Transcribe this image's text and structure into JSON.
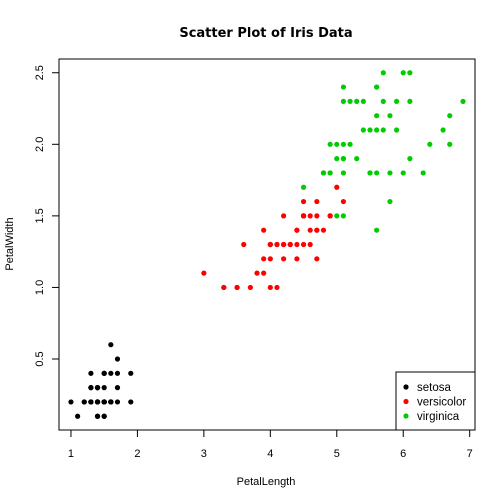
{
  "chart_data": {
    "type": "scatter",
    "title": "Scatter Plot of Iris Data",
    "xlabel": "PetalLength",
    "ylabel": "PetalWidth",
    "xlim": [
      0.82,
      7.08
    ],
    "ylim": [
      0.004,
      2.596
    ],
    "xticks": [
      1,
      2,
      3,
      4,
      5,
      6,
      7
    ],
    "yticks": [
      0.5,
      1.0,
      1.5,
      2.0,
      2.5
    ],
    "xtick_labels": [
      "1",
      "2",
      "3",
      "4",
      "5",
      "6",
      "7"
    ],
    "ytick_labels": [
      "0.5",
      "1.0",
      "1.5",
      "2.0",
      "2.5"
    ],
    "grid": false,
    "legend_position": "bottom-right",
    "series": [
      {
        "name": "setosa",
        "color": "#000000",
        "points": [
          [
            1.4,
            0.2
          ],
          [
            1.4,
            0.2
          ],
          [
            1.3,
            0.2
          ],
          [
            1.5,
            0.2
          ],
          [
            1.4,
            0.2
          ],
          [
            1.7,
            0.4
          ],
          [
            1.4,
            0.3
          ],
          [
            1.5,
            0.2
          ],
          [
            1.4,
            0.2
          ],
          [
            1.5,
            0.1
          ],
          [
            1.5,
            0.2
          ],
          [
            1.6,
            0.2
          ],
          [
            1.4,
            0.1
          ],
          [
            1.1,
            0.1
          ],
          [
            1.2,
            0.2
          ],
          [
            1.5,
            0.4
          ],
          [
            1.3,
            0.4
          ],
          [
            1.4,
            0.3
          ],
          [
            1.7,
            0.3
          ],
          [
            1.5,
            0.3
          ],
          [
            1.7,
            0.2
          ],
          [
            1.5,
            0.4
          ],
          [
            1.0,
            0.2
          ],
          [
            1.7,
            0.5
          ],
          [
            1.9,
            0.2
          ],
          [
            1.6,
            0.2
          ],
          [
            1.6,
            0.4
          ],
          [
            1.5,
            0.2
          ],
          [
            1.4,
            0.2
          ],
          [
            1.6,
            0.2
          ],
          [
            1.6,
            0.2
          ],
          [
            1.5,
            0.4
          ],
          [
            1.5,
            0.1
          ],
          [
            1.4,
            0.2
          ],
          [
            1.5,
            0.2
          ],
          [
            1.2,
            0.2
          ],
          [
            1.3,
            0.2
          ],
          [
            1.4,
            0.1
          ],
          [
            1.3,
            0.2
          ],
          [
            1.5,
            0.2
          ],
          [
            1.3,
            0.3
          ],
          [
            1.3,
            0.3
          ],
          [
            1.3,
            0.2
          ],
          [
            1.6,
            0.6
          ],
          [
            1.9,
            0.4
          ],
          [
            1.4,
            0.3
          ],
          [
            1.6,
            0.2
          ],
          [
            1.4,
            0.2
          ],
          [
            1.5,
            0.2
          ],
          [
            1.4,
            0.2
          ]
        ]
      },
      {
        "name": "versicolor",
        "color": "#ff0000",
        "points": [
          [
            4.7,
            1.4
          ],
          [
            4.5,
            1.5
          ],
          [
            4.9,
            1.5
          ],
          [
            4.0,
            1.3
          ],
          [
            4.6,
            1.5
          ],
          [
            4.5,
            1.3
          ],
          [
            4.7,
            1.6
          ],
          [
            3.3,
            1.0
          ],
          [
            4.6,
            1.3
          ],
          [
            3.9,
            1.4
          ],
          [
            3.5,
            1.0
          ],
          [
            4.2,
            1.5
          ],
          [
            4.0,
            1.0
          ],
          [
            4.7,
            1.4
          ],
          [
            3.6,
            1.3
          ],
          [
            4.4,
            1.4
          ],
          [
            4.5,
            1.5
          ],
          [
            4.1,
            1.0
          ],
          [
            4.5,
            1.5
          ],
          [
            3.9,
            1.1
          ],
          [
            4.8,
            1.8
          ],
          [
            4.0,
            1.3
          ],
          [
            4.9,
            1.5
          ],
          [
            4.7,
            1.2
          ],
          [
            4.3,
            1.3
          ],
          [
            4.4,
            1.4
          ],
          [
            4.8,
            1.4
          ],
          [
            5.0,
            1.7
          ],
          [
            4.5,
            1.5
          ],
          [
            3.5,
            1.0
          ],
          [
            3.8,
            1.1
          ],
          [
            3.7,
            1.0
          ],
          [
            3.9,
            1.2
          ],
          [
            5.1,
            1.6
          ],
          [
            4.5,
            1.5
          ],
          [
            4.5,
            1.6
          ],
          [
            4.7,
            1.5
          ],
          [
            4.4,
            1.3
          ],
          [
            4.1,
            1.3
          ],
          [
            4.0,
            1.3
          ],
          [
            4.4,
            1.2
          ],
          [
            4.6,
            1.4
          ],
          [
            4.0,
            1.2
          ],
          [
            3.3,
            1.0
          ],
          [
            4.2,
            1.3
          ],
          [
            4.2,
            1.2
          ],
          [
            4.2,
            1.3
          ],
          [
            4.3,
            1.3
          ],
          [
            3.0,
            1.1
          ],
          [
            4.1,
            1.3
          ]
        ]
      },
      {
        "name": "virginica",
        "color": "#00cd00",
        "points": [
          [
            6.0,
            2.5
          ],
          [
            5.1,
            1.9
          ],
          [
            5.9,
            2.1
          ],
          [
            5.6,
            1.8
          ],
          [
            5.8,
            2.2
          ],
          [
            6.6,
            2.1
          ],
          [
            4.5,
            1.7
          ],
          [
            6.3,
            1.8
          ],
          [
            5.8,
            1.8
          ],
          [
            6.1,
            2.5
          ],
          [
            5.1,
            2.0
          ],
          [
            5.3,
            1.9
          ],
          [
            5.5,
            2.1
          ],
          [
            5.0,
            2.0
          ],
          [
            5.1,
            2.4
          ],
          [
            5.3,
            2.3
          ],
          [
            5.5,
            1.8
          ],
          [
            6.7,
            2.2
          ],
          [
            6.9,
            2.3
          ],
          [
            5.0,
            1.5
          ],
          [
            5.7,
            2.3
          ],
          [
            4.9,
            2.0
          ],
          [
            6.7,
            2.0
          ],
          [
            4.9,
            1.8
          ],
          [
            5.7,
            2.1
          ],
          [
            6.0,
            1.8
          ],
          [
            4.8,
            1.8
          ],
          [
            4.9,
            1.8
          ],
          [
            5.6,
            2.1
          ],
          [
            5.8,
            1.6
          ],
          [
            6.1,
            1.9
          ],
          [
            6.4,
            2.0
          ],
          [
            5.6,
            2.2
          ],
          [
            5.1,
            1.5
          ],
          [
            5.6,
            1.4
          ],
          [
            6.1,
            2.3
          ],
          [
            5.6,
            2.4
          ],
          [
            5.5,
            1.8
          ],
          [
            4.8,
            1.8
          ],
          [
            5.4,
            2.1
          ],
          [
            5.6,
            2.4
          ],
          [
            5.1,
            2.3
          ],
          [
            5.1,
            1.9
          ],
          [
            5.9,
            2.3
          ],
          [
            5.7,
            2.5
          ],
          [
            5.2,
            2.3
          ],
          [
            5.0,
            1.9
          ],
          [
            5.2,
            2.0
          ],
          [
            5.4,
            2.3
          ],
          [
            5.1,
            1.8
          ]
        ]
      }
    ]
  }
}
